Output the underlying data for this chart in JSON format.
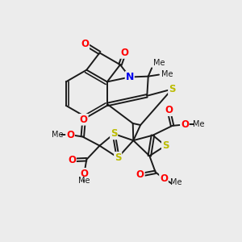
{
  "bg_color": "#ececec",
  "bond_color": "#1a1a1a",
  "bond_width": 1.4,
  "dbo": 0.06,
  "atom_colors": {
    "O": "#ff0000",
    "N": "#0000ee",
    "S": "#bbbb00",
    "C": "#1a1a1a"
  },
  "afs": 8.5,
  "figsize": [
    3.0,
    3.0
  ],
  "dpi": 100,
  "xlim": [
    0,
    10
  ],
  "ylim": [
    0,
    10
  ]
}
